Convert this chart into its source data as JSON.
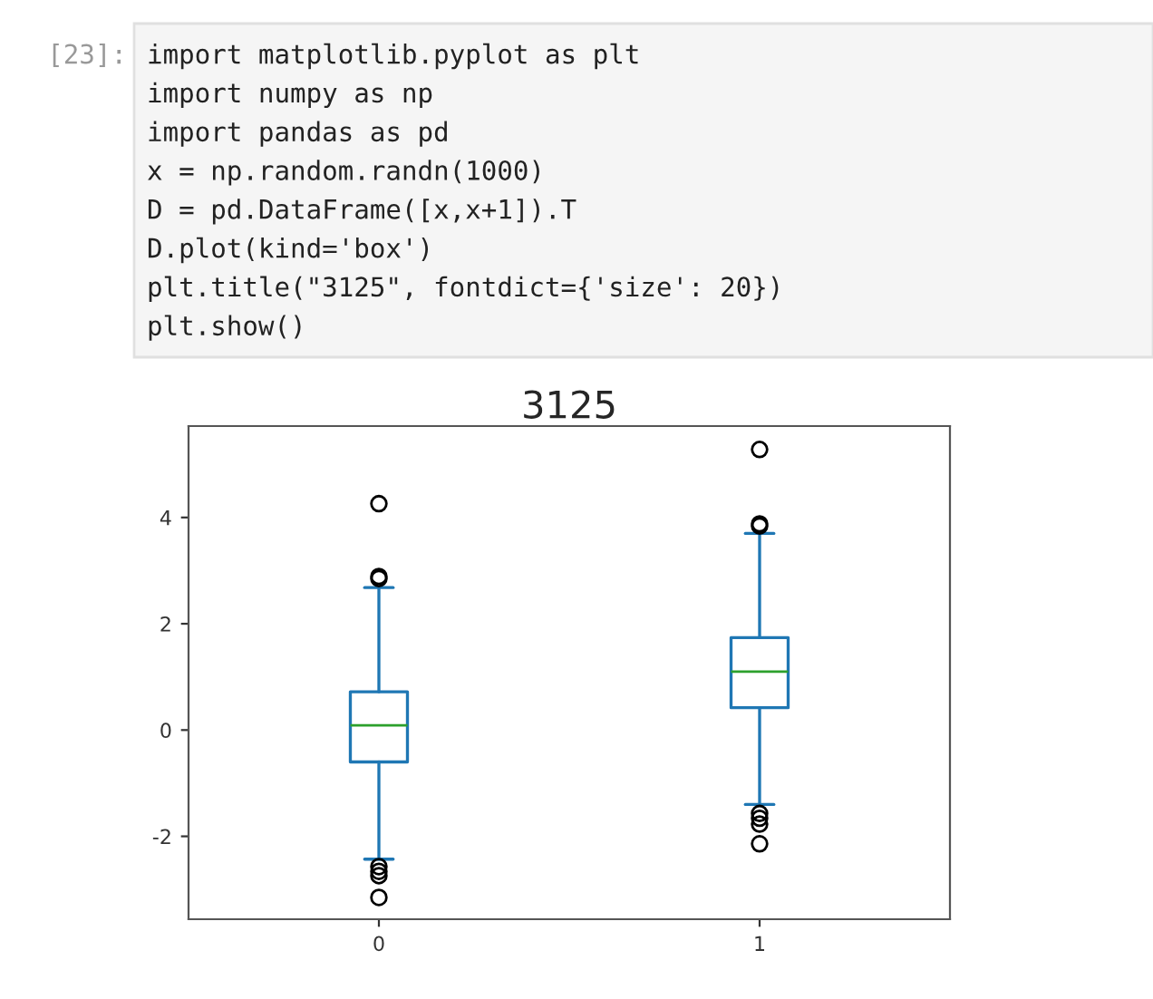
{
  "chart_data": {
    "type": "box",
    "title": "3125",
    "categories": [
      "0",
      "1"
    ],
    "series": [
      {
        "color": "#1f77b4",
        "boxes": [
          {
            "low": -2.43,
            "q1": -0.6,
            "median": 0.09,
            "q3": 0.72,
            "high": 2.68,
            "outliers": [
              4.26,
              2.89,
              2.85,
              -2.57,
              -2.66,
              -2.74,
              -3.15
            ]
          },
          {
            "low": -1.4,
            "q1": 0.42,
            "median": 1.1,
            "q3": 1.74,
            "high": 3.7,
            "outliers": [
              5.28,
              3.88,
              3.84,
              -1.57,
              -1.66,
              -1.77,
              -2.14
            ]
          }
        ]
      }
    ],
    "ylim": [
      -3.56,
      5.72
    ],
    "yticks": [
      -2,
      0,
      2,
      4
    ],
    "grid": false,
    "annotations": [
      "[23]:",
      "import matplotlib.pyplot as plt",
      "import numpy as np",
      "import pandas as pd",
      "x = np.random.randn(1000)",
      "D = pd.DataFrame([x,x+1]).T",
      "D.plot(kind='box')",
      "plt.title(\"3125\", fontdict={'size': 20})",
      "plt.show()"
    ]
  }
}
